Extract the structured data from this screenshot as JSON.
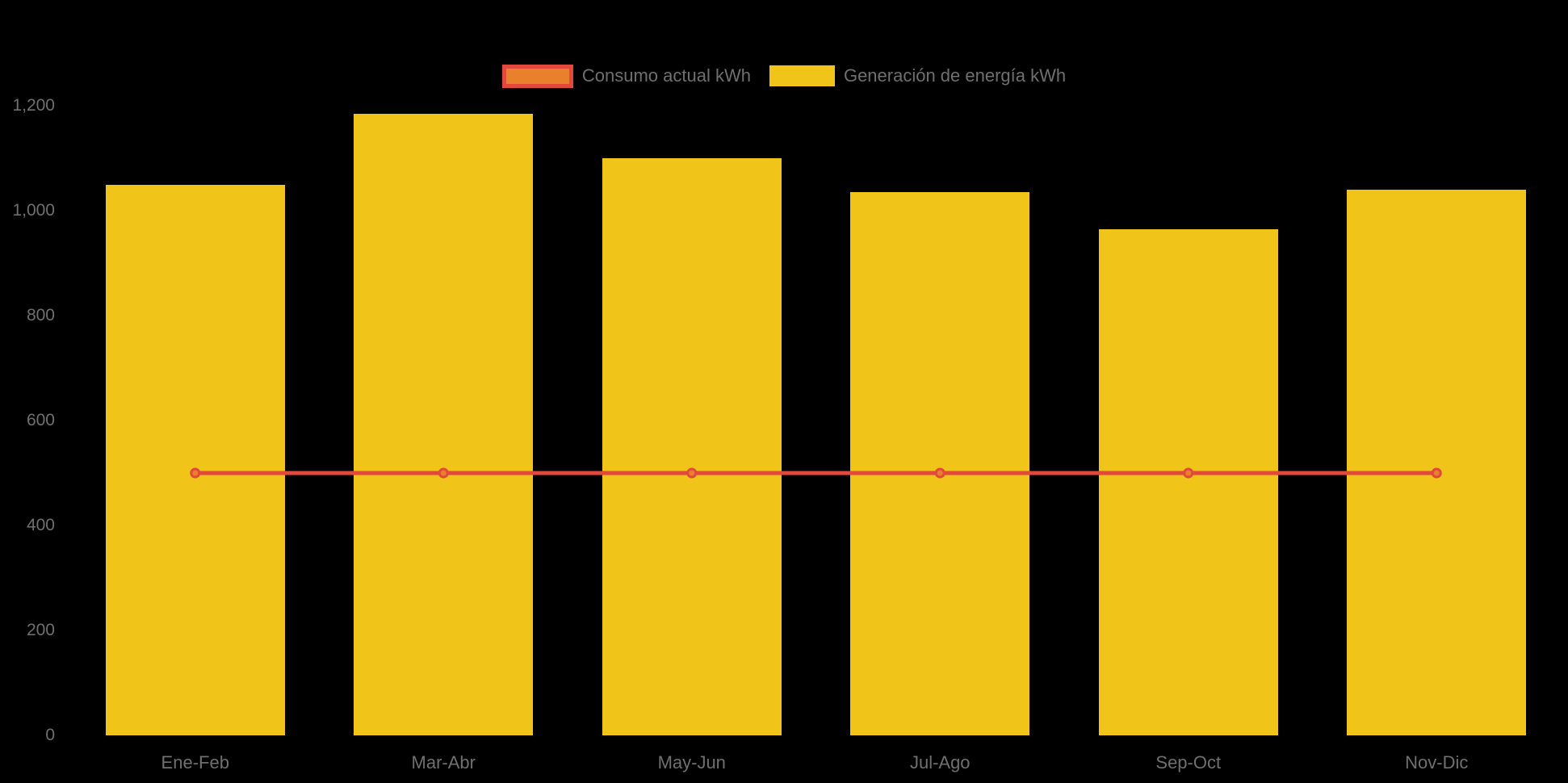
{
  "chart_data": {
    "type": "bar",
    "title": "",
    "categories": [
      "Ene-Feb",
      "Mar-Abr",
      "May-Jun",
      "Jul-Ago",
      "Sep-Oct",
      "Nov-Dic"
    ],
    "series": [
      {
        "name": "Consumo actual kWh",
        "type": "line",
        "values": [
          500,
          500,
          500,
          500,
          500,
          500
        ],
        "color": "#e2483c",
        "marker_fill": "#e8802c",
        "marker_shape": "circle"
      },
      {
        "name": "Generación de energía kWh",
        "type": "bar",
        "values": [
          1050,
          1185,
          1100,
          1035,
          965,
          1040
        ],
        "color": "#f0c419"
      }
    ],
    "y_ticks": [
      {
        "label": "0",
        "value": 0
      },
      {
        "label": "200",
        "value": 200
      },
      {
        "label": "400",
        "value": 400
      },
      {
        "label": "600",
        "value": 600
      },
      {
        "label": "800",
        "value": 800
      },
      {
        "label": "1,000",
        "value": 1000
      },
      {
        "label": "1,200",
        "value": 1200
      }
    ],
    "xlabel": "",
    "ylabel": "",
    "ylim": [
      0,
      1200
    ],
    "grid": false,
    "legend_position": "top-center",
    "background_color": "#000000",
    "axis_label_color": "#6f6f6f"
  },
  "legend": {
    "items": [
      {
        "label": "Consumo actual kWh"
      },
      {
        "label": "Generación de energía kWh"
      }
    ]
  }
}
